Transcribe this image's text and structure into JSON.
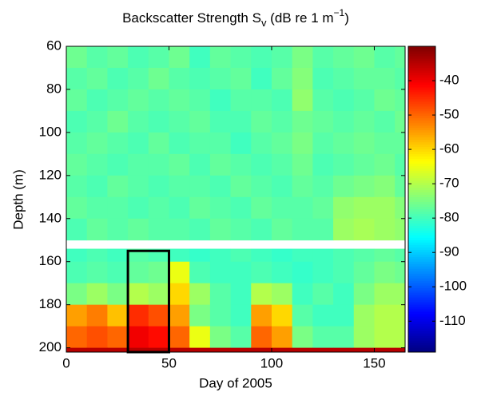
{
  "chart_data": {
    "type": "heatmap",
    "title_parts": {
      "text": "Backscatter Strength S",
      "subscript": "v",
      "text2": " (dB re 1 m",
      "superscript": "−1",
      "text3": ")"
    },
    "x_label": "Day of 2005",
    "y_label": "Depth (m)",
    "x": [
      0,
      10,
      20,
      30,
      40,
      50,
      60,
      70,
      80,
      90,
      100,
      110,
      120,
      130,
      140,
      150,
      160,
      165
    ],
    "y": [
      60,
      70,
      80,
      90,
      100,
      110,
      120,
      130,
      140,
      150,
      154,
      160,
      170,
      180,
      190,
      200,
      202
    ],
    "values": [
      [
        -76,
        -78,
        -77,
        -79,
        -78,
        -76,
        -80,
        -77,
        -78,
        -79,
        -78,
        -75,
        -78,
        -77,
        -76,
        -78,
        -77
      ],
      [
        -78,
        -77,
        -79,
        -78,
        -76,
        -78,
        -79,
        -78,
        -77,
        -80,
        -77,
        -74,
        -79,
        -78,
        -77,
        -77,
        -78
      ],
      [
        -77,
        -79,
        -78,
        -77,
        -78,
        -77,
        -78,
        -80,
        -78,
        -78,
        -79,
        -73,
        -78,
        -79,
        -78,
        -76,
        -77
      ],
      [
        -79,
        -78,
        -76,
        -78,
        -79,
        -78,
        -77,
        -79,
        -79,
        -77,
        -78,
        -76,
        -77,
        -78,
        -77,
        -78,
        -76
      ],
      [
        -78,
        -77,
        -78,
        -79,
        -77,
        -79,
        -78,
        -78,
        -80,
        -78,
        -77,
        -75,
        -78,
        -77,
        -76,
        -77,
        -77
      ],
      [
        -77,
        -78,
        -79,
        -78,
        -78,
        -77,
        -79,
        -77,
        -78,
        -79,
        -78,
        -76,
        -79,
        -78,
        -77,
        -76,
        -78
      ],
      [
        -78,
        -79,
        -77,
        -78,
        -79,
        -78,
        -78,
        -79,
        -77,
        -78,
        -79,
        -77,
        -78,
        -76,
        -75,
        -74,
        -77
      ],
      [
        -77,
        -78,
        -78,
        -79,
        -78,
        -79,
        -77,
        -78,
        -79,
        -77,
        -78,
        -78,
        -77,
        -73,
        -72,
        -72,
        -74
      ],
      [
        -79,
        -77,
        -78,
        -77,
        -78,
        -78,
        -79,
        -77,
        -78,
        -79,
        -77,
        -78,
        -78,
        -72,
        -71,
        -72,
        -73
      ],
      [
        null,
        null,
        null,
        null,
        null,
        null,
        null,
        null,
        null,
        null,
        null,
        null,
        null,
        null,
        null,
        null,
        null
      ],
      [
        -80,
        -79,
        -80,
        -78,
        -79,
        -80,
        -81,
        -80,
        -79,
        -80,
        -81,
        -80,
        -80,
        -79,
        -78,
        -77,
        -78
      ],
      [
        -79,
        -78,
        -79,
        -77,
        -76,
        -65,
        -79,
        -80,
        -80,
        -79,
        -80,
        -81,
        -80,
        -79,
        -77,
        -75,
        -76
      ],
      [
        -75,
        -72,
        -75,
        -70,
        -72,
        -60,
        -72,
        -78,
        -80,
        -70,
        -72,
        -80,
        -78,
        -80,
        -75,
        -72,
        -72
      ],
      [
        -55,
        -52,
        -58,
        -45,
        -48,
        -55,
        -75,
        -78,
        -80,
        -55,
        -60,
        -78,
        -80,
        -80,
        -72,
        -70,
        -70
      ],
      [
        -50,
        -48,
        -50,
        -40,
        -42,
        -50,
        -65,
        -75,
        -78,
        -50,
        -55,
        -75,
        -78,
        -78,
        -72,
        -70,
        -70
      ],
      [
        -35,
        -35,
        -35,
        -35,
        -35,
        -35,
        -35,
        -35,
        -35,
        -35,
        -35,
        -35,
        -35,
        -35,
        -35,
        -35,
        -35
      ]
    ],
    "xlim": [
      0,
      165
    ],
    "ylim": [
      60,
      202
    ],
    "y_reversed": true,
    "xticks": [
      0,
      50,
      100,
      150
    ],
    "yticks": [
      60,
      80,
      100,
      120,
      140,
      160,
      180,
      200
    ],
    "colormap": "jet",
    "clim": [
      -119,
      -30
    ],
    "colorbar_ticks": [
      -40,
      -50,
      -60,
      -70,
      -80,
      -90,
      -100,
      -110
    ],
    "highlight_box": {
      "x": [
        30,
        50
      ],
      "y": [
        155,
        202
      ],
      "color": "#000000"
    }
  }
}
